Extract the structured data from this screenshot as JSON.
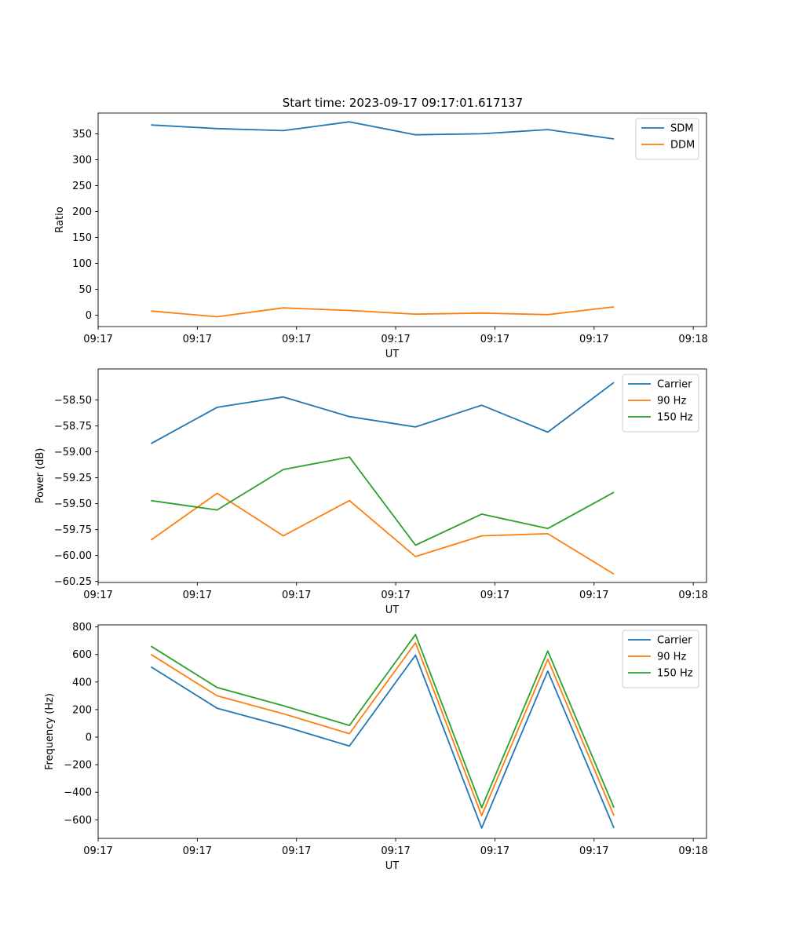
{
  "figure": {
    "title": "Start time: 2023-09-17 09:17:01.617137"
  },
  "chart_data": [
    {
      "type": "line",
      "title": "Start time: 2023-09-17 09:17:01.617137",
      "xlabel": "UT",
      "ylabel": "Ratio",
      "x": [
        1,
        2,
        3,
        4,
        5,
        6,
        7,
        8
      ],
      "xlim": [
        0.2,
        9.4
      ],
      "x_ticks": [
        0.2,
        1.7,
        3.2,
        4.7,
        6.2,
        7.7,
        9.2
      ],
      "x_tick_labels": [
        "09:17",
        "09:17",
        "09:17",
        "09:17",
        "09:17",
        "09:17",
        "09:18"
      ],
      "ylim": [
        -22,
        390
      ],
      "y_ticks": [
        0,
        50,
        100,
        150,
        200,
        250,
        300,
        350
      ],
      "y_tick_labels": [
        "0",
        "50",
        "100",
        "150",
        "200",
        "250",
        "300",
        "350"
      ],
      "legend_position": "top-right",
      "series": [
        {
          "name": "SDM",
          "color": "#1f77b4",
          "values": [
            367,
            360,
            356,
            373,
            348,
            350,
            358,
            340
          ]
        },
        {
          "name": "DDM",
          "color": "#ff7f0e",
          "values": [
            8,
            -3,
            14,
            9,
            2,
            4,
            1,
            16
          ]
        }
      ]
    },
    {
      "type": "line",
      "title": "",
      "xlabel": "UT",
      "ylabel": "Power (dB)",
      "x": [
        1,
        2,
        3,
        4,
        5,
        6,
        7,
        8
      ],
      "xlim": [
        0.2,
        9.4
      ],
      "x_ticks": [
        0.2,
        1.7,
        3.2,
        4.7,
        6.2,
        7.7,
        9.2
      ],
      "x_tick_labels": [
        "09:17",
        "09:17",
        "09:17",
        "09:17",
        "09:17",
        "09:17",
        "09:18"
      ],
      "ylim": [
        -60.26,
        -58.2
      ],
      "y_ticks": [
        -60.25,
        -60.0,
        -59.75,
        -59.5,
        -59.25,
        -59.0,
        -58.75,
        -58.5
      ],
      "y_tick_labels": [
        "−60.25",
        "−60.00",
        "−59.75",
        "−59.50",
        "−59.25",
        "−59.00",
        "−58.75",
        "−58.50"
      ],
      "legend_position": "top-right",
      "series": [
        {
          "name": "Carrier",
          "color": "#1f77b4",
          "values": [
            -58.92,
            -58.57,
            -58.47,
            -58.66,
            -58.76,
            -58.55,
            -58.81,
            -58.33
          ]
        },
        {
          "name": "90 Hz",
          "color": "#ff7f0e",
          "values": [
            -59.85,
            -59.4,
            -59.81,
            -59.47,
            -60.01,
            -59.81,
            -59.79,
            -60.18
          ]
        },
        {
          "name": "150 Hz",
          "color": "#2ca02c",
          "values": [
            -59.47,
            -59.56,
            -59.17,
            -59.05,
            -59.9,
            -59.6,
            -59.74,
            -59.39
          ]
        }
      ]
    },
    {
      "type": "line",
      "title": "",
      "xlabel": "UT",
      "ylabel": "Frequency (Hz)",
      "x": [
        1,
        2,
        3,
        4,
        5,
        6,
        7,
        8
      ],
      "xlim": [
        0.2,
        9.4
      ],
      "x_ticks": [
        0.2,
        1.7,
        3.2,
        4.7,
        6.2,
        7.7,
        9.2
      ],
      "x_tick_labels": [
        "09:17",
        "09:17",
        "09:17",
        "09:17",
        "09:17",
        "09:17",
        "09:18"
      ],
      "ylim": [
        -735,
        815
      ],
      "y_ticks": [
        -600,
        -400,
        -200,
        0,
        200,
        400,
        600,
        800
      ],
      "y_tick_labels": [
        "−600",
        "−400",
        "−200",
        "0",
        "200",
        "400",
        "600",
        "800"
      ],
      "legend_position": "top-right",
      "series": [
        {
          "name": "Carrier",
          "color": "#1f77b4",
          "values": [
            510,
            210,
            80,
            -65,
            595,
            -660,
            480,
            -660
          ]
        },
        {
          "name": "90 Hz",
          "color": "#ff7f0e",
          "values": [
            600,
            300,
            170,
            25,
            685,
            -570,
            565,
            -570
          ]
        },
        {
          "name": "150 Hz",
          "color": "#2ca02c",
          "values": [
            660,
            360,
            228,
            85,
            745,
            -512,
            625,
            -512
          ]
        }
      ]
    }
  ]
}
